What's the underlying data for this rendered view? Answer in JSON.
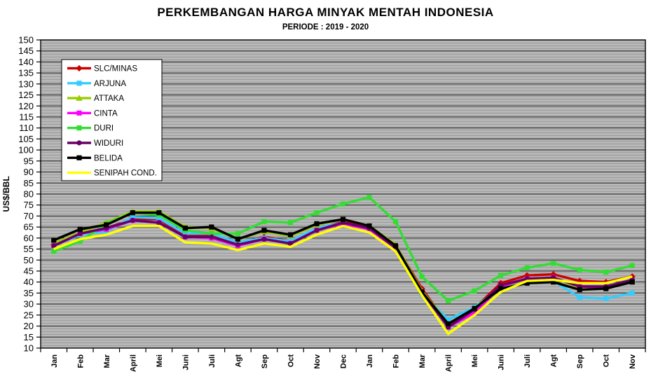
{
  "chart_data": {
    "type": "line",
    "title": "PERKEMBANGAN HARGA MINYAK MENTAH INDONESIA",
    "subtitle": "PERIODE  : 2019 - 2020",
    "ylabel": "US$/BBL",
    "ylim": [
      10,
      150
    ],
    "ytick_step": 5,
    "grid": true,
    "legend_position": "upper-left-inside",
    "plot_background": "#b3b3b3",
    "categories": [
      "Jan",
      "Feb",
      "Mar",
      "April",
      "Mei",
      "Juni",
      "Juli",
      "Agt",
      "Sep",
      "Oct",
      "Nov",
      "Dec",
      "Jan",
      "Feb",
      "Mar",
      "April",
      "Mei",
      "Juni",
      "Juli",
      "Agt",
      "Sep",
      "Oct",
      "Nov"
    ],
    "series": [
      {
        "name": "SLC/MINAS",
        "color": "#cc0000",
        "marker": "diamond",
        "values": [
          57,
          62,
          64.5,
          68.5,
          68.5,
          61,
          61.5,
          57.5,
          60.5,
          58.5,
          64,
          67.5,
          64.5,
          56.5,
          37,
          20.5,
          28,
          39.5,
          43,
          43.5,
          40.5,
          40,
          42.5
        ]
      },
      {
        "name": "ARJUNA",
        "color": "#33ccff",
        "marker": "square",
        "values": [
          56.5,
          61.5,
          63,
          69.5,
          69,
          62,
          62,
          58,
          60,
          58.5,
          64.5,
          67,
          64,
          56,
          34.5,
          23,
          28.5,
          37.5,
          40,
          40.5,
          33,
          32.5,
          35
        ]
      },
      {
        "name": "ATTAKA",
        "color": "#99cc00",
        "marker": "triangle",
        "values": [
          57.5,
          62.5,
          67,
          72,
          72,
          65,
          64.5,
          59.5,
          63,
          61,
          66,
          68.5,
          65.5,
          57,
          36,
          21,
          28,
          38,
          41,
          42,
          37.5,
          37.5,
          41
        ]
      },
      {
        "name": "CINTA",
        "color": "#ff00ff",
        "marker": "square",
        "values": [
          56.5,
          62,
          64,
          68,
          67,
          60.5,
          60,
          56.5,
          59.5,
          57.5,
          63.5,
          66.5,
          64,
          55.5,
          35.5,
          19.5,
          26,
          38,
          41.5,
          42,
          38,
          37.5,
          40.5
        ]
      },
      {
        "name": "DURI",
        "color": "#33dd33",
        "marker": "square",
        "values": [
          54,
          58.5,
          66.5,
          71.5,
          70.5,
          63.5,
          62,
          62,
          67.5,
          67,
          71.5,
          75.5,
          78.5,
          67.5,
          42.5,
          31.5,
          36,
          43,
          46.5,
          48.5,
          45.5,
          44.5,
          47.5
        ]
      },
      {
        "name": "WIDURI",
        "color": "#660066",
        "marker": "circle",
        "values": [
          56.5,
          62,
          64.5,
          68,
          67,
          60.5,
          60.5,
          57,
          59.5,
          57.5,
          63.5,
          67,
          64.5,
          55.5,
          35.5,
          19.5,
          27.5,
          38.5,
          41.5,
          42,
          38,
          38,
          41
        ]
      },
      {
        "name": "BELIDA",
        "color": "#000000",
        "marker": "square",
        "values": [
          59,
          64,
          66,
          71.5,
          71.5,
          64.5,
          65,
          59.5,
          63.5,
          61.5,
          66.5,
          68.5,
          65.5,
          56.5,
          35.5,
          21,
          28,
          37,
          39.5,
          40,
          36.5,
          37,
          40
        ]
      },
      {
        "name": "SENIPAH COND.",
        "color": "#ffff00",
        "marker": "none",
        "values": [
          55,
          59.5,
          61.5,
          65.5,
          65.5,
          58,
          57.5,
          54.5,
          57.5,
          56,
          61.5,
          65.5,
          62.5,
          54,
          34,
          16.5,
          25,
          35.5,
          40.5,
          41,
          39.5,
          39.5,
          42.5
        ]
      }
    ]
  }
}
